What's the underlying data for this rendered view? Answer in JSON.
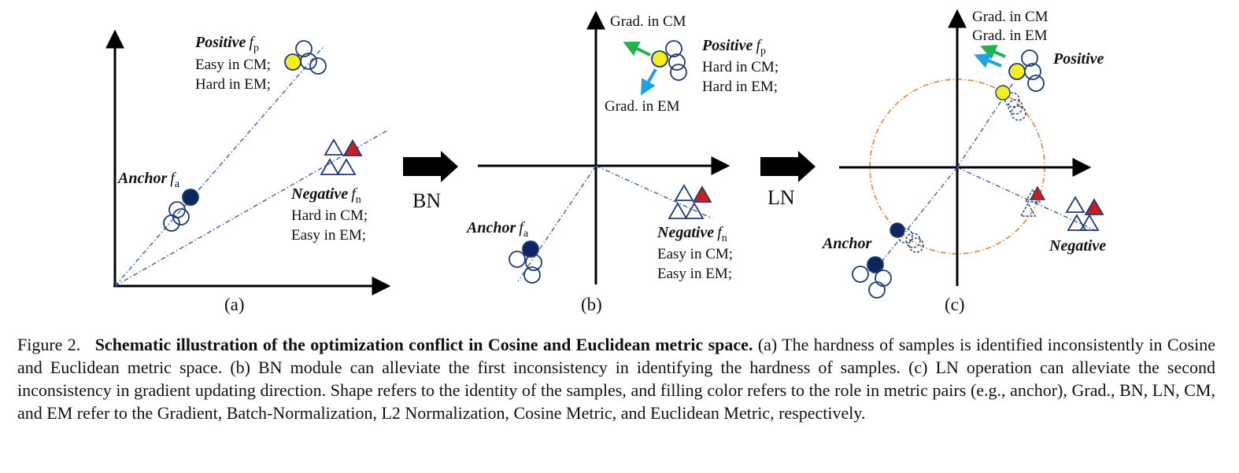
{
  "panel_a": {
    "positive_label": "Positive",
    "positive_f": "f",
    "positive_sub": "p",
    "positive_line1": "Easy in CM;",
    "positive_line2": "Hard in EM;",
    "anchor_label": "Anchor",
    "anchor_f": "f",
    "anchor_sub": "a",
    "negative_label": "Negative",
    "negative_f": "f",
    "negative_sub": "n",
    "negative_line1": "Hard in CM;",
    "negative_line2": "Easy in EM;",
    "caption": "(a)"
  },
  "arrow_bn": "BN",
  "panel_b": {
    "grad_cm": "Grad. in CM",
    "grad_em": "Grad. in EM",
    "positive_label": "Positive",
    "positive_f": "f",
    "positive_sub": "p",
    "positive_line1": "Hard in CM;",
    "positive_line2": "Hard in EM;",
    "anchor_label": "Anchor",
    "anchor_f": "f",
    "anchor_sub": "a",
    "negative_label": "Negative",
    "negative_f": "f",
    "negative_sub": "n",
    "negative_line1": "Easy in CM;",
    "negative_line2": "Easy in EM;",
    "caption": "(b)"
  },
  "arrow_ln": "LN",
  "panel_c": {
    "grad_cm": "Grad. in CM",
    "grad_em": "Grad. in EM",
    "positive_label": "Positive",
    "anchor_label": "Anchor",
    "negative_label": "Negative",
    "caption": "(c)"
  },
  "caption": {
    "number": "Figure 2.",
    "title": "Schematic illustration of the optimization conflict in Cosine and Euclidean metric space.",
    "body": "(a) The hardness of samples is identified inconsistently in Cosine and Euclidean metric space. (b) BN module can alleviate the first inconsistency in identifying the hardness of samples. (c) LN operation can alleviate the second inconsistency in gradient updating direction. Shape refers to the identity of the samples, and filling color refers to the role in metric pairs (e.g., anchor), Grad., BN, LN, CM, and EM refer to the Gradient, Batch-Normalization, L2 Normalization, Cosine Metric, and Euclidean Metric, respectively."
  },
  "colors": {
    "navy": "#1f3b73",
    "anchor_fill": "#0d2660",
    "positive_fill": "#f5ee1e",
    "negative_fill": "#c81e1e",
    "grad_cm": "#22b14c",
    "grad_em": "#1fa2e0",
    "circle": "#e8823a"
  }
}
